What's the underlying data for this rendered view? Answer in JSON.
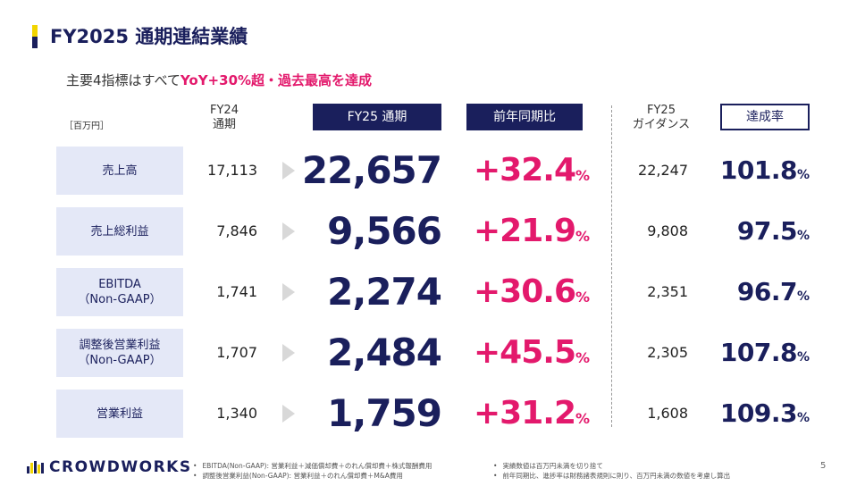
{
  "title": "FY2025 通期連結業績",
  "subtitle": {
    "prefix": "主要4指標はすべて",
    "highlight": "YoY+30%超・過去最高を達成"
  },
  "unit": "［百万円］",
  "headers": {
    "fy24": "FY24\n通期",
    "fy25": "FY25 通期",
    "yoy": "前年同期比",
    "guidance": "FY25\nガイダンス",
    "achievement": "達成率"
  },
  "rows": [
    {
      "label": "売上高",
      "fy24": "17,113",
      "fy25": "22,657",
      "yoy": "+32.4",
      "guidance": "22,247",
      "achievement": "101.8"
    },
    {
      "label": "売上総利益",
      "fy24": "7,846",
      "fy25": "9,566",
      "yoy": "+21.9",
      "guidance": "9,808",
      "achievement": "97.5"
    },
    {
      "label": "EBITDA\n（Non-GAAP）",
      "fy24": "1,741",
      "fy25": "2,274",
      "yoy": "+30.6",
      "guidance": "2,351",
      "achievement": "96.7"
    },
    {
      "label": "調整後営業利益\n（Non-GAAP）",
      "fy24": "1,707",
      "fy25": "2,484",
      "yoy": "+45.5",
      "guidance": "2,305",
      "achievement": "107.8"
    },
    {
      "label": "営業利益",
      "fy24": "1,340",
      "fy25": "1,759",
      "yoy": "+31.2",
      "guidance": "1,608",
      "achievement": "109.3"
    }
  ],
  "percent_sign": "%",
  "logo": {
    "text": "CROWDWORKS",
    "icon": "crowdworks-logo-mark"
  },
  "notes_left": [
    "EBITDA(Non-GAAP): 営業利益＋減価償却費＋のれん償却費＋株式報酬費用",
    "調整後営業利益(Non-GAAP): 営業利益＋のれん償却費＋M&A費用"
  ],
  "notes_right": [
    "実績数値は百万円未満を切り捨て",
    "前年同期比、進捗率は財務諸表規則に則り、百万円未満の数値を考慮し算出"
  ],
  "page_number": "5",
  "colors": {
    "navy": "#1a1f5c",
    "pink": "#e3196c",
    "yellow": "#f2d500",
    "label_bg": "#e4e8f7"
  }
}
